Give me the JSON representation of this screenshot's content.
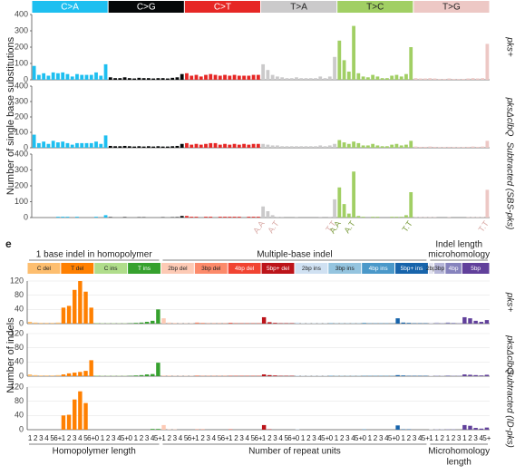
{
  "chart_data": [
    {
      "type": "bar",
      "ylabel": "Number of single base substitutions",
      "ylim": [
        0,
        400
      ],
      "yticks": [
        0,
        100,
        200,
        300,
        400
      ],
      "grid": false,
      "sections": [
        {
          "groups": [
            {
              "label": "C>A",
              "color": "#1ebff0",
              "categories": [
                null,
                null,
                null,
                null,
                null,
                null,
                null,
                null,
                null,
                null,
                null,
                null,
                null,
                null,
                null,
                null
              ]
            },
            {
              "label": "C>G",
              "color": "#050708",
              "categories": [
                null,
                null,
                null,
                null,
                null,
                null,
                null,
                null,
                null,
                null,
                null,
                null,
                null,
                null,
                null,
                null
              ]
            },
            {
              "label": "C>T",
              "color": "#e62725",
              "categories": [
                null,
                null,
                null,
                null,
                null,
                null,
                null,
                null,
                null,
                null,
                null,
                null,
                null,
                null,
                null,
                null
              ]
            },
            {
              "label": "T>A",
              "color": "#cbcacb",
              "categories": [
                "A.A",
                null,
                null,
                "A.T",
                null,
                null,
                null,
                null,
                null,
                null,
                null,
                null,
                null,
                null,
                null,
                "T.T"
              ]
            },
            {
              "label": "T>C",
              "color": "#a1cf64",
              "categories": [
                "A.A",
                null,
                null,
                "A.T",
                null,
                null,
                null,
                null,
                null,
                null,
                null,
                null,
                null,
                null,
                null,
                "T.T"
              ]
            },
            {
              "label": "T>G",
              "color": "#edc8c5",
              "categories": [
                null,
                null,
                null,
                null,
                null,
                null,
                null,
                null,
                null,
                null,
                null,
                null,
                null,
                null,
                null,
                "T.T"
              ]
            }
          ]
        }
      ],
      "series": [
        {
          "name": "pks+",
          "values": [
            85,
            30,
            40,
            25,
            45,
            40,
            45,
            35,
            20,
            35,
            30,
            30,
            30,
            45,
            25,
            95,
            15,
            10,
            10,
            15,
            10,
            8,
            12,
            10,
            10,
            8,
            10,
            10,
            8,
            12,
            15,
            35,
            40,
            25,
            30,
            20,
            30,
            35,
            30,
            25,
            30,
            25,
            30,
            25,
            25,
            25,
            30,
            30,
            95,
            60,
            30,
            20,
            15,
            10,
            10,
            15,
            10,
            10,
            10,
            10,
            20,
            10,
            20,
            140,
            240,
            120,
            50,
            330,
            40,
            20,
            15,
            30,
            20,
            10,
            10,
            25,
            30,
            20,
            35,
            200,
            10,
            8,
            8,
            10,
            8,
            5,
            5,
            8,
            5,
            5,
            5,
            8,
            10,
            8,
            10,
            220
          ]
        },
        {
          "name": "pksΔclbQ",
          "values": [
            85,
            30,
            40,
            25,
            45,
            35,
            40,
            30,
            20,
            30,
            30,
            30,
            30,
            40,
            25,
            80,
            12,
            10,
            10,
            12,
            10,
            8,
            10,
            8,
            10,
            8,
            10,
            8,
            8,
            10,
            12,
            25,
            30,
            20,
            25,
            20,
            25,
            30,
            30,
            20,
            25,
            20,
            25,
            20,
            25,
            20,
            25,
            25,
            25,
            20,
            15,
            15,
            10,
            10,
            10,
            10,
            10,
            10,
            10,
            10,
            15,
            10,
            15,
            25,
            50,
            35,
            25,
            40,
            30,
            15,
            15,
            25,
            15,
            10,
            10,
            20,
            25,
            15,
            20,
            45,
            8,
            6,
            6,
            8,
            6,
            5,
            5,
            6,
            5,
            5,
            5,
            6,
            8,
            6,
            8,
            45
          ]
        },
        {
          "name": "Subtracted (SBS-pks)",
          "values": [
            0,
            0,
            0,
            0,
            0,
            5,
            5,
            5,
            0,
            5,
            0,
            0,
            0,
            5,
            0,
            15,
            3,
            0,
            0,
            3,
            0,
            0,
            2,
            2,
            0,
            0,
            0,
            2,
            0,
            2,
            3,
            10,
            10,
            5,
            5,
            0,
            5,
            5,
            0,
            5,
            5,
            5,
            5,
            5,
            0,
            5,
            5,
            5,
            70,
            40,
            15,
            5,
            5,
            0,
            0,
            5,
            0,
            0,
            0,
            0,
            5,
            0,
            5,
            115,
            190,
            85,
            25,
            290,
            10,
            5,
            0,
            5,
            5,
            0,
            0,
            5,
            5,
            5,
            15,
            160,
            2,
            2,
            2,
            2,
            2,
            0,
            0,
            2,
            0,
            0,
            0,
            2,
            2,
            2,
            2,
            175
          ]
        }
      ]
    },
    {
      "type": "bar",
      "panel_label": "e",
      "ylabel": "Number of indels",
      "ylim": [
        0,
        120
      ],
      "yticks": [
        0,
        40,
        80,
        120
      ],
      "grid": true,
      "sections": [
        {
          "title": [
            "1 base indel in homopolymer"
          ],
          "xlabel": [
            "Homopolymer length"
          ],
          "groups": [
            {
              "label": "C del",
              "color": "#fdbe6f",
              "categories": [
                "1",
                "2",
                "3",
                "4",
                "5",
                "6+"
              ]
            },
            {
              "label": "T del",
              "color": "#ff8001",
              "categories": [
                "1",
                "2",
                "3",
                "4",
                "5",
                "6+"
              ]
            },
            {
              "label": "C ins",
              "color": "#b0dd8b",
              "categories": [
                "0",
                "1",
                "2",
                "3",
                "4",
                "5+"
              ]
            },
            {
              "label": "T ins",
              "color": "#36a12e",
              "categories": [
                "0",
                "1",
                "2",
                "3",
                "4",
                "5+"
              ]
            }
          ]
        },
        {
          "title": [
            "Multiple-base indel"
          ],
          "xlabel": [
            "Number of repeat units"
          ],
          "groups": [
            {
              "label": "2bp del",
              "color": "#fdcab5",
              "categories": [
                "1",
                "2",
                "3",
                "4",
                "5",
                "6+"
              ]
            },
            {
              "label": "3bp del",
              "color": "#fc8a6a",
              "categories": [
                "1",
                "2",
                "3",
                "4",
                "5",
                "6+"
              ]
            },
            {
              "label": "4bp del",
              "color": "#f14432",
              "categories": [
                "1",
                "2",
                "3",
                "4",
                "5",
                "6+"
              ]
            },
            {
              "label": "5bp+ del",
              "color": "#bc141a",
              "categories": [
                "1",
                "2",
                "3",
                "4",
                "5",
                "6+"
              ]
            },
            {
              "label": "2bp ins",
              "color": "#d0e1f2",
              "categories": [
                "0",
                "1",
                "2",
                "3",
                "4",
                "5+"
              ]
            },
            {
              "label": "3bp ins",
              "color": "#94c4df",
              "categories": [
                "0",
                "1",
                "2",
                "3",
                "4",
                "5+"
              ]
            },
            {
              "label": "4bp ins",
              "color": "#4a98c9",
              "categories": [
                "0",
                "1",
                "2",
                "3",
                "4",
                "5+"
              ]
            },
            {
              "label": "5bp+ ins",
              "color": "#1764ab",
              "categories": [
                "0",
                "1",
                "2",
                "3",
                "4",
                "5+"
              ]
            }
          ]
        },
        {
          "title": [
            "Indel length",
            "microhomology"
          ],
          "xlabel": [
            "Microhomology",
            "length"
          ],
          "groups": [
            {
              "label": "2bp",
              "color": "#e2e2ef",
              "categories": [
                "1"
              ]
            },
            {
              "label": "3bp",
              "color": "#b6b6d8",
              "categories": [
                "1",
                "2"
              ]
            },
            {
              "label": "4bp",
              "color": "#8683bd",
              "categories": [
                "1",
                "2",
                "3"
              ]
            },
            {
              "label": "5bp",
              "color": "#61409b",
              "categories": [
                "1",
                "2",
                "3",
                "4",
                "5+"
              ]
            }
          ]
        }
      ],
      "series": [
        {
          "name": "pks+",
          "values": [
            5,
            3,
            2,
            2,
            2,
            3,
            45,
            50,
            95,
            120,
            90,
            45,
            2,
            1,
            1,
            1,
            1,
            1,
            1,
            2,
            3,
            5,
            8,
            40,
            15,
            3,
            2,
            1,
            1,
            1,
            3,
            2,
            1,
            1,
            1,
            1,
            2,
            1,
            1,
            1,
            1,
            1,
            18,
            4,
            2,
            1,
            1,
            1,
            3,
            1,
            1,
            1,
            1,
            1,
            2,
            1,
            1,
            1,
            1,
            1,
            2,
            1,
            1,
            1,
            1,
            1,
            15,
            3,
            2,
            1,
            1,
            1,
            3,
            3,
            2,
            3,
            2,
            1,
            18,
            15,
            8,
            5,
            10
          ]
        },
        {
          "name": "pksΔclbQ",
          "values": [
            5,
            3,
            2,
            2,
            2,
            3,
            5,
            8,
            10,
            12,
            15,
            45,
            2,
            1,
            1,
            1,
            1,
            1,
            1,
            2,
            3,
            5,
            6,
            38,
            2,
            2,
            1,
            1,
            1,
            1,
            2,
            1,
            1,
            1,
            1,
            1,
            1,
            1,
            1,
            1,
            1,
            1,
            5,
            3,
            2,
            1,
            1,
            1,
            2,
            1,
            1,
            1,
            1,
            1,
            2,
            1,
            1,
            1,
            1,
            1,
            1,
            1,
            1,
            1,
            1,
            1,
            3,
            2,
            1,
            1,
            1,
            1,
            2,
            2,
            1,
            2,
            1,
            1,
            5,
            4,
            3,
            2,
            4
          ]
        },
        {
          "name": "Subtracted (ID-pks)",
          "values": [
            0,
            0,
            0,
            0,
            0,
            0,
            40,
            42,
            85,
            108,
            75,
            0,
            0,
            0,
            0,
            0,
            0,
            0,
            0,
            0,
            0,
            0,
            2,
            2,
            13,
            1,
            1,
            0,
            0,
            0,
            1,
            1,
            0,
            0,
            0,
            0,
            1,
            0,
            0,
            0,
            0,
            0,
            13,
            1,
            0,
            0,
            0,
            0,
            1,
            0,
            0,
            0,
            0,
            0,
            0,
            0,
            0,
            0,
            0,
            0,
            1,
            0,
            0,
            0,
            0,
            0,
            12,
            1,
            1,
            0,
            0,
            0,
            1,
            1,
            1,
            1,
            1,
            0,
            13,
            11,
            5,
            3,
            6
          ]
        }
      ]
    }
  ]
}
